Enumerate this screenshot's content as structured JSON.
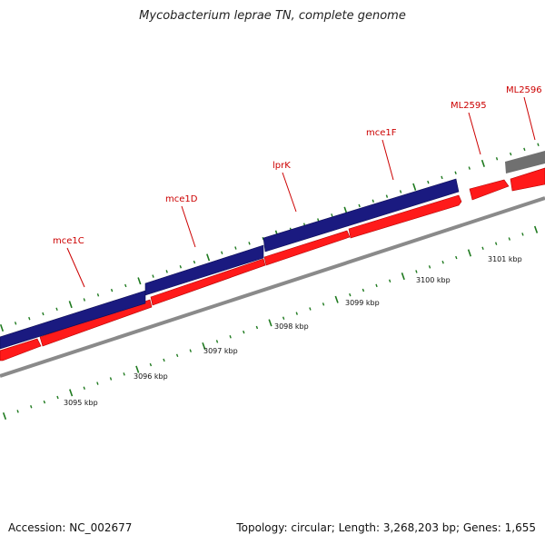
{
  "title": "Mycobacterium leprae TN, complete genome",
  "footer": {
    "accession": "Accession: NC_002677",
    "info": "Topology: circular; Length: 3,268,203 bp; Genes: 1,655"
  },
  "colors": {
    "forward_cds": "#1a1a80",
    "reverse_cds": "#ff1a1a",
    "other_feature": "#707070",
    "backbone": "#8a8a8a",
    "ticks": "#1f7a1f",
    "label_text": "#cc0000"
  },
  "scale_labels": [
    "3095 kbp",
    "3096 kbp",
    "3097 kbp",
    "3098 kbp",
    "3099 kbp",
    "3100 kbp",
    "3101 kbp"
  ],
  "gene_labels": [
    "mce1C",
    "mce1D",
    "lprK",
    "mce1F",
    "ML2595",
    "ML2596"
  ]
}
